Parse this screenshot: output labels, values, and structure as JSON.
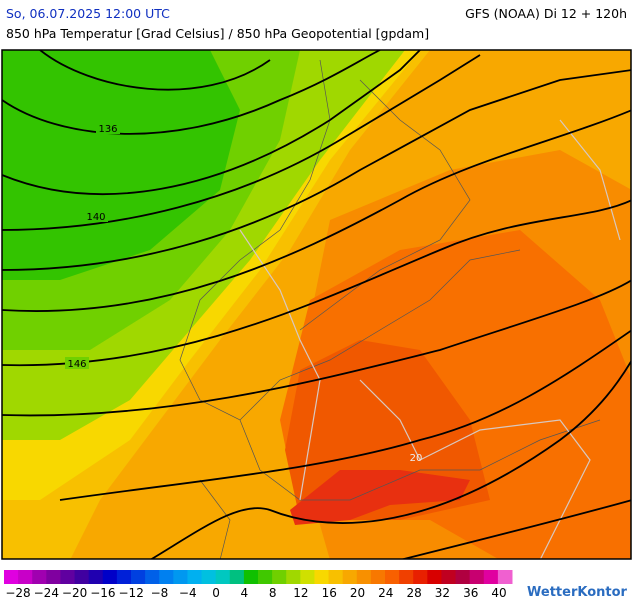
{
  "header": {
    "date": "So, 06.07.2025 12:00 UTC",
    "model": "GFS (NOAA) Di 12 + 120h",
    "title": "850 hPa Temperatur [Grad Celsius] / 850 hPa Geopotential [gpdam]"
  },
  "map": {
    "contour_labels": [
      "136",
      "140",
      "146",
      "20"
    ]
  },
  "legend": {
    "colors": [
      "#e000e0",
      "#c800c8",
      "#a000b0",
      "#8000a0",
      "#6000a0",
      "#4000a0",
      "#2000b0",
      "#0000c8",
      "#0020d8",
      "#0040e0",
      "#0060e8",
      "#0080f0",
      "#0098f0",
      "#00b0f0",
      "#00c0e0",
      "#00c8c0",
      "#00c080",
      "#10c000",
      "#40c800",
      "#70d000",
      "#a0d800",
      "#d0e000",
      "#f8d800",
      "#f8c000",
      "#f8a800",
      "#f89000",
      "#f87800",
      "#f86000",
      "#f04000",
      "#e82000",
      "#d80000",
      "#c00020",
      "#b00040",
      "#c80070",
      "#e000a0",
      "#f060d0"
    ],
    "ticks": [
      {
        "value": -28,
        "label": "−28"
      },
      {
        "value": -24,
        "label": "−24"
      },
      {
        "value": -20,
        "label": "−20"
      },
      {
        "value": -16,
        "label": "−16"
      },
      {
        "value": -12,
        "label": "−12"
      },
      {
        "value": -8,
        "label": "−8"
      },
      {
        "value": -4,
        "label": "−4"
      },
      0,
      4,
      8,
      12,
      16,
      20,
      24,
      28,
      32,
      36,
      40
    ]
  },
  "logo": "WetterKontor"
}
